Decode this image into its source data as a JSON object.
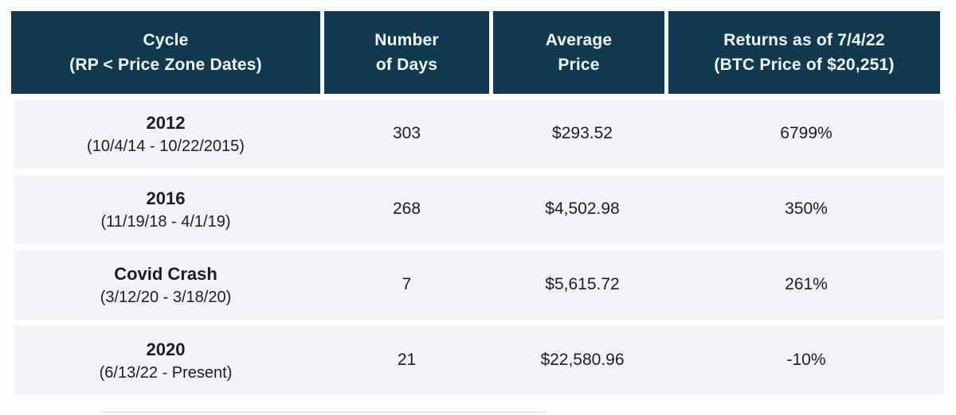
{
  "colors": {
    "header_bg": "#113a50",
    "header_text": "#f2f8fc",
    "row_bg": "#f3f2f7",
    "body_text": "#1d1d1f"
  },
  "chart_data": {
    "type": "table",
    "columns": [
      {
        "line1": "Cycle",
        "line2": "(RP < Price Zone Dates)"
      },
      {
        "line1": "Number",
        "line2": "of Days"
      },
      {
        "line1": "Average",
        "line2": "Price"
      },
      {
        "line1": "Returns as of 7/4/22",
        "line2": "(BTC Price of $20,251)"
      }
    ],
    "rows": [
      {
        "cycle": "2012",
        "dates": "(10/4/14 - 10/22/2015)",
        "days": "303",
        "avg_price": "$293.52",
        "returns": "6799%"
      },
      {
        "cycle": "2016",
        "dates": "(11/19/18 - 4/1/19)",
        "days": "268",
        "avg_price": "$4,502.98",
        "returns": "350%"
      },
      {
        "cycle": "Covid Crash",
        "dates": "(3/12/20 - 3/18/20)",
        "days": "7",
        "avg_price": "$5,615.72",
        "returns": "261%"
      },
      {
        "cycle": "2020",
        "dates": "(6/13/22 - Present)",
        "days": "21",
        "avg_price": "$22,580.96",
        "returns": "-10%"
      }
    ]
  }
}
